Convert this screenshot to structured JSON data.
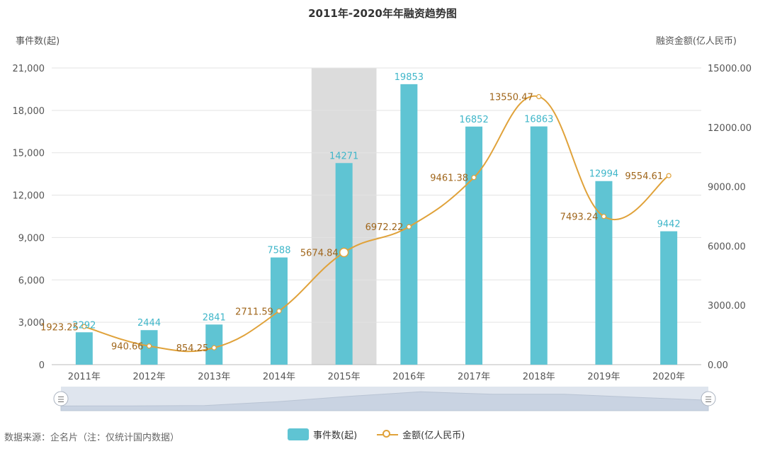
{
  "chart_data": {
    "type": "bar",
    "title": "2011年-2020年年融资趋势图",
    "categories": [
      "2011年",
      "2012年",
      "2013年",
      "2014年",
      "2015年",
      "2016年",
      "2017年",
      "2018年",
      "2019年",
      "2020年"
    ],
    "y_left": {
      "name": "事件数(起)",
      "range": [
        0,
        21000
      ],
      "ticks": [
        "0",
        "3,000",
        "6,000",
        "9,000",
        "12,000",
        "15,000",
        "18,000",
        "21,000"
      ]
    },
    "y_right": {
      "name": "融资金额(亿人民币)",
      "range": [
        0,
        15000
      ],
      "ticks": [
        "0.00",
        "3000.00",
        "6000.00",
        "9000.00",
        "12000.00",
        "15000.00"
      ]
    },
    "series": [
      {
        "name": "事件数(起)",
        "type": "bar",
        "axis": "left",
        "color": "#5fc4d3",
        "values": [
          2292,
          2444,
          2841,
          7588,
          14271,
          19853,
          16852,
          16863,
          12994,
          9442
        ],
        "labels": [
          "2292",
          "2444",
          "2841",
          "7588",
          "14271",
          "19853",
          "16852",
          "16863",
          "12994",
          "9442"
        ]
      },
      {
        "name": "金额(亿人民币)",
        "type": "line",
        "smooth": true,
        "axis": "right",
        "color": "#e0a23a",
        "values": [
          1923.25,
          940.66,
          854.25,
          2711.59,
          5674.84,
          6972.22,
          9461.38,
          13550.47,
          7493.24,
          9554.61
        ],
        "labels": [
          "1923.25",
          "940.66",
          "854.25",
          "2711.59",
          "5674.84",
          "6972.22",
          "9461.38",
          "13550.47",
          "7493.24",
          "9554.61"
        ]
      }
    ],
    "highlighted_category": "2015年",
    "grid": true,
    "legend_position": "bottom-center"
  },
  "source_note": "数据来源：企名片（注：仅统计国内数据）",
  "legend": {
    "bar_label": "事件数(起)",
    "line_label": "金额(亿人民币)"
  },
  "slider_handle_glyph": "☰"
}
